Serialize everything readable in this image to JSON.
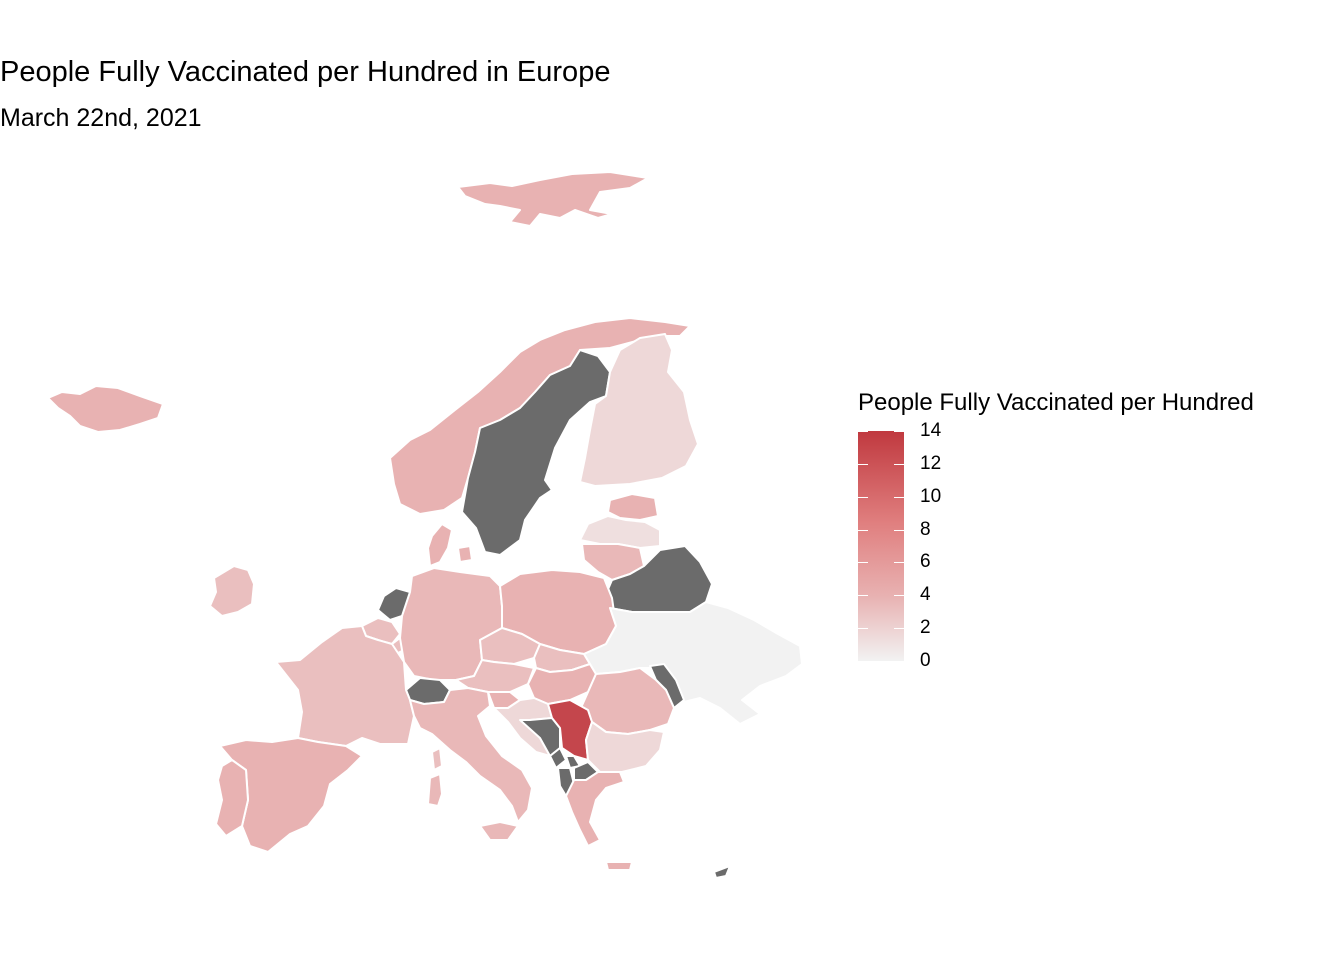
{
  "title": "People Fully Vaccinated per Hundred in Europe",
  "subtitle": "March 22nd, 2021",
  "legend": {
    "title": "People Fully Vaccinated per Hundred",
    "min": 0,
    "max": 14,
    "ticks": [
      "0",
      "2",
      "4",
      "6",
      "8",
      "10",
      "12",
      "14"
    ],
    "colors": {
      "low": "#f2f2f2",
      "mid": "#e8b2b2",
      "high": "#c0393f",
      "no_data": "#6b6b6b"
    }
  },
  "chart_data": {
    "type": "choropleth",
    "variable": "People Fully Vaccinated per Hundred",
    "scale_range": [
      0,
      14
    ],
    "regions": [
      {
        "name": "Svalbard",
        "value": 5
      },
      {
        "name": "Iceland",
        "value": 5
      },
      {
        "name": "Norway",
        "value": 5
      },
      {
        "name": "Sweden",
        "value": null
      },
      {
        "name": "Finland",
        "value": 2
      },
      {
        "name": "Estonia",
        "value": 5
      },
      {
        "name": "Latvia",
        "value": 1.5
      },
      {
        "name": "Lithuania",
        "value": 4.5
      },
      {
        "name": "Belarus",
        "value": null
      },
      {
        "name": "Denmark",
        "value": 5
      },
      {
        "name": "Ireland",
        "value": 4
      },
      {
        "name": "Netherlands",
        "value": null
      },
      {
        "name": "Belgium",
        "value": 4
      },
      {
        "name": "Luxembourg",
        "value": 4
      },
      {
        "name": "Germany",
        "value": 4.5
      },
      {
        "name": "Poland",
        "value": 5
      },
      {
        "name": "Ukraine",
        "value": 0
      },
      {
        "name": "Czechia",
        "value": 4
      },
      {
        "name": "Slovakia",
        "value": 4
      },
      {
        "name": "Austria",
        "value": 4
      },
      {
        "name": "Hungary",
        "value": 5
      },
      {
        "name": "Moldova",
        "value": null
      },
      {
        "name": "France",
        "value": 4
      },
      {
        "name": "Switzerland",
        "value": null
      },
      {
        "name": "Italy",
        "value": 4.5
      },
      {
        "name": "Slovenia",
        "value": 5
      },
      {
        "name": "Croatia",
        "value": 2
      },
      {
        "name": "Bosnia and Herzegovina",
        "value": null
      },
      {
        "name": "Serbia",
        "value": 13
      },
      {
        "name": "Montenegro",
        "value": null
      },
      {
        "name": "Kosovo",
        "value": null
      },
      {
        "name": "Albania",
        "value": null
      },
      {
        "name": "North Macedonia",
        "value": null
      },
      {
        "name": "Romania",
        "value": 4.5
      },
      {
        "name": "Bulgaria",
        "value": 2
      },
      {
        "name": "Greece",
        "value": 5
      },
      {
        "name": "Spain",
        "value": 5
      },
      {
        "name": "Portugal",
        "value": 5
      },
      {
        "name": "Cyprus",
        "value": null
      }
    ]
  }
}
